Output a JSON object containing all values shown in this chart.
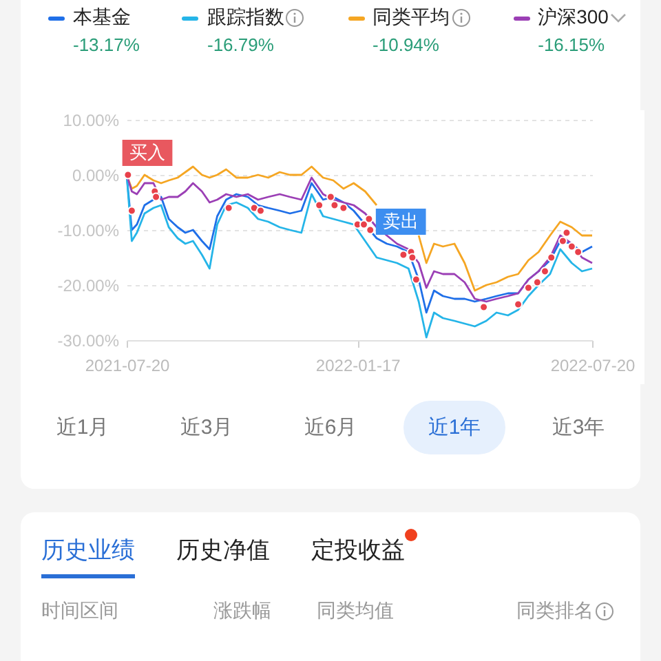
{
  "chart_data": {
    "type": "line",
    "legend": "top",
    "grid": "y",
    "line_style": "solid",
    "xlim": [
      "2021-07-20",
      "2022-07-20"
    ],
    "xticks": [
      "2021-07-20",
      "2022-01-17",
      "2022-07-20"
    ],
    "ylim": [
      -30,
      10
    ],
    "yticks": [
      {
        "value": 10,
        "label": "10.00%"
      },
      {
        "value": 0,
        "label": "0.00%"
      },
      {
        "value": -10,
        "label": "-10.00%"
      },
      {
        "value": -20,
        "label": "-20.00%"
      },
      {
        "value": -30,
        "label": "-30.00%"
      }
    ],
    "x": [
      "2021-07-20",
      "2021-07-24",
      "2021-07-28",
      "2021-08-03",
      "2021-08-10",
      "2021-08-16",
      "2021-08-22",
      "2021-08-29",
      "2021-09-04",
      "2021-09-10",
      "2021-09-17",
      "2021-09-23",
      "2021-09-29",
      "2021-10-06",
      "2021-10-14",
      "2021-10-23",
      "2021-10-31",
      "2021-11-08",
      "2021-11-17",
      "2021-11-25",
      "2021-12-04",
      "2021-12-12",
      "2021-12-21",
      "2021-12-29",
      "2022-01-06",
      "2022-01-14",
      "2022-01-23",
      "2022-02-01",
      "2022-02-09",
      "2022-02-17",
      "2022-02-26",
      "2022-03-06",
      "2022-03-12",
      "2022-03-18",
      "2022-03-25",
      "2022-04-03",
      "2022-04-11",
      "2022-04-19",
      "2022-04-28",
      "2022-05-06",
      "2022-05-15",
      "2022-05-23",
      "2022-05-31",
      "2022-06-08",
      "2022-06-17",
      "2022-06-25",
      "2022-07-04",
      "2022-07-12",
      "2022-07-20"
    ],
    "series": [
      {
        "name": "本基金",
        "color": "#1f6fe8",
        "values": [
          0,
          -10,
          -9,
          -5.5,
          -4.5,
          -4,
          -8,
          -9.5,
          -10.5,
          -10,
          -12,
          -13.5,
          -7.5,
          -4.5,
          -3.5,
          -4,
          -5.5,
          -6,
          -6.5,
          -7,
          -6.5,
          -1.5,
          -4.5,
          -4,
          -5,
          -6.5,
          -9,
          -11.5,
          -12.5,
          -13,
          -14,
          -19,
          -25,
          -21,
          -22,
          -22.5,
          -22.5,
          -23,
          -22.5,
          -22,
          -21.5,
          -21.5,
          -19,
          -17.5,
          -15.5,
          -12,
          -12.5,
          -14,
          -13
        ]
      },
      {
        "name": "跟踪指数",
        "color": "#25b5e8",
        "values": [
          0,
          -12,
          -10.5,
          -7,
          -6,
          -5.5,
          -9.5,
          -11.5,
          -12.5,
          -12,
          -14.5,
          -17,
          -9,
          -5.5,
          -5,
          -6,
          -8,
          -8.5,
          -9.5,
          -10,
          -10.5,
          -3.5,
          -7.5,
          -8,
          -8.5,
          -9,
          -12,
          -15,
          -15.5,
          -16,
          -17,
          -23,
          -29.5,
          -25,
          -26,
          -26.5,
          -27,
          -27.5,
          -26.5,
          -25,
          -25.5,
          -24.5,
          -22,
          -20,
          -18,
          -13.5,
          -16,
          -17.5,
          -17
        ]
      },
      {
        "name": "同类平均",
        "color": "#f5a623",
        "values": [
          0,
          -2.5,
          -2,
          0,
          -1,
          -1.5,
          -1,
          -0.5,
          0.5,
          1.5,
          0,
          -0.5,
          0,
          1,
          -0.5,
          -0.5,
          0,
          -0.5,
          0.5,
          0,
          0,
          1.5,
          -0.5,
          -1,
          -2.5,
          -1.5,
          -3,
          -5.5,
          null,
          null,
          null,
          -11,
          -16,
          -12.5,
          -13,
          -12.5,
          -16,
          -21,
          -20,
          -19.5,
          -18.5,
          -18,
          -15.5,
          -14,
          -11,
          -8.5,
          -9.5,
          -11,
          -11
        ]
      },
      {
        "name": "沪深300",
        "color": "#9b3fb5",
        "values": [
          0,
          -3,
          -3.5,
          -1.5,
          -1.5,
          -4.5,
          -4,
          -4,
          -3,
          -1.5,
          -3,
          -5,
          -4.5,
          -3.5,
          -4,
          -3.5,
          -4.5,
          -4,
          -3.5,
          -4,
          -4.5,
          -0.5,
          -3.5,
          -4.5,
          -5,
          -5.5,
          -7,
          -9.5,
          -11,
          -12.5,
          -13.5,
          -16,
          -20.5,
          -17.5,
          -18,
          -18,
          -19.5,
          -22.5,
          -23,
          -22.5,
          -22,
          -21.5,
          -19,
          -17.5,
          -15,
          -11,
          -12.5,
          -15,
          -16
        ]
      },
      {
        "type": "scatter",
        "color": "#e8404a",
        "x": [
          "2021-07-21",
          "2021-07-24",
          "2021-08-11",
          "2021-08-12",
          "2021-10-08",
          "2021-10-28",
          "2021-11-02",
          "2021-12-18",
          "2021-12-27",
          "2021-12-30",
          "2022-01-06",
          "2022-01-17",
          "2022-01-22",
          "2022-01-26",
          "2022-01-27",
          "2022-02-22",
          "2022-02-28",
          "2022-03-01",
          "2022-03-04",
          "2022-04-26",
          "2022-05-23",
          "2022-05-31",
          "2022-06-07",
          "2022-06-13",
          "2022-06-18",
          "2022-06-27",
          "2022-06-30",
          "2022-07-04",
          "2022-07-09"
        ],
        "values": [
          0,
          -6.5,
          -3,
          -4,
          -6,
          -6,
          -6.5,
          -5.5,
          -4,
          -5.5,
          -6,
          -9,
          -9,
          -8,
          -10,
          -14.5,
          -14,
          -15,
          -19,
          -24,
          -23.5,
          -20.5,
          -19.5,
          -17.5,
          -15,
          -12,
          -10.5,
          -13,
          -14
        ]
      }
    ],
    "annotations": [
      "-13.17%",
      "-16.79%",
      "-10.94%",
      "-16.15%",
      "近1月",
      "近3月",
      "近6月",
      "近1年",
      "近3年",
      "历史业绩",
      "历史净值",
      "定投收益",
      "时间区间",
      "涨跌幅",
      "同类均值",
      "同类排名",
      {
        "text": "买入",
        "x": "2021-07-20",
        "y": 0
      },
      {
        "text": "卖出",
        "x": "2022-02-20",
        "y": -12.5
      }
    ]
  }
}
